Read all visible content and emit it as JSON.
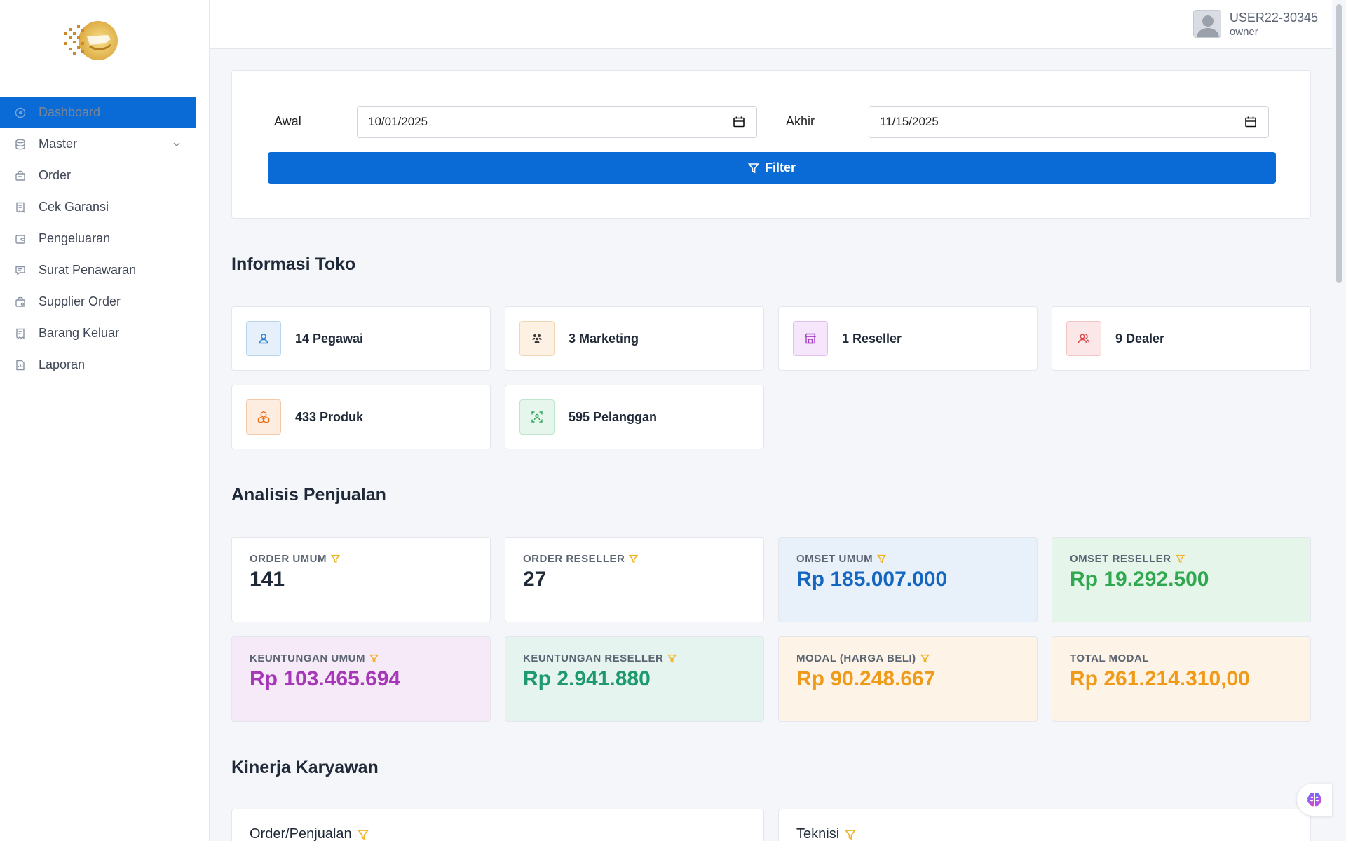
{
  "sidebar": {
    "items": [
      {
        "label": "Dashboard",
        "icon": "dashboard-icon",
        "active": true
      },
      {
        "label": "Master",
        "icon": "database-icon",
        "has_children": true
      },
      {
        "label": "Order",
        "icon": "order-icon"
      },
      {
        "label": "Cek Garansi",
        "icon": "receipt-icon"
      },
      {
        "label": "Pengeluaran",
        "icon": "wallet-icon"
      },
      {
        "label": "Surat Penawaran",
        "icon": "message-icon"
      },
      {
        "label": "Supplier Order",
        "icon": "bag-icon"
      },
      {
        "label": "Barang Keluar",
        "icon": "receipt-out-icon"
      },
      {
        "label": "Laporan",
        "icon": "report-icon"
      }
    ]
  },
  "user": {
    "name": "USER22-30345",
    "role": "owner"
  },
  "filter": {
    "start_label": "Awal",
    "start_value": "10/01/2025",
    "end_label": "Akhir",
    "end_value": "11/15/2025",
    "button_label": "Filter"
  },
  "info_toko": {
    "title": "Informasi Toko",
    "cards": [
      {
        "text": "14 Pegawai",
        "icon": "user-icon",
        "color": "#2f80d1",
        "bg": "#e6f0fa",
        "border": "#b9d3ee"
      },
      {
        "text": "3 Marketing",
        "icon": "team-icon",
        "color": "#3a3a3a",
        "bg": "#fdf1e3",
        "border": "#f1d6b4"
      },
      {
        "text": "1 Reseller",
        "icon": "shop-icon",
        "color": "#a23bc6",
        "bg": "#f6e6fb",
        "border": "#e3c1ef"
      },
      {
        "text": "9 Dealer",
        "icon": "users-icon",
        "color": "#d94848",
        "bg": "#fbe7e7",
        "border": "#f1c3c3"
      },
      {
        "text": "433 Produk",
        "icon": "boxes-icon",
        "color": "#e8711a",
        "bg": "#fdece0",
        "border": "#f3c9a8"
      },
      {
        "text": "595 Pelanggan",
        "icon": "scan-user-icon",
        "color": "#2ea45c",
        "bg": "#e6f6ec",
        "border": "#bfe5cc"
      }
    ]
  },
  "analisis": {
    "title": "Analisis Penjualan",
    "cards": [
      {
        "label": "ORDER UMUM",
        "value": "141",
        "bg": "#ffffff",
        "color": "#1f2937"
      },
      {
        "label": "ORDER RESELLER",
        "value": "27",
        "bg": "#ffffff",
        "color": "#1f2937"
      },
      {
        "label": "OMSET UMUM",
        "value": "Rp 185.007.000",
        "bg": "#e8f1fa",
        "color": "#1566c0"
      },
      {
        "label": "OMSET RESELLER",
        "value": "Rp 19.292.500",
        "bg": "#e6f5ea",
        "color": "#2fa84f"
      },
      {
        "label": "KEUNTUNGAN UMUM",
        "value": "Rp 103.465.694",
        "bg": "#f6e9f8",
        "color": "#a637b8"
      },
      {
        "label": "KEUNTUNGAN RESELLER",
        "value": "Rp 2.941.880",
        "bg": "#e6f4f0",
        "color": "#1f9a6e"
      },
      {
        "label": "MODAL (HARGA BELI)",
        "value": "Rp 90.248.667",
        "bg": "#fdf3e6",
        "color": "#f09a1a"
      },
      {
        "label": "TOTAL MODAL",
        "value": "Rp 261.214.310,00",
        "bg": "#fdf3e6",
        "color": "#f09a1a"
      }
    ]
  },
  "kinerja": {
    "title": "Kinerja Karyawan",
    "cards": [
      {
        "title": "Order/Penjualan"
      },
      {
        "title": "Teknisi"
      }
    ]
  },
  "colors": {
    "primary": "#0b6bd6",
    "funnel": "#f0b429"
  }
}
